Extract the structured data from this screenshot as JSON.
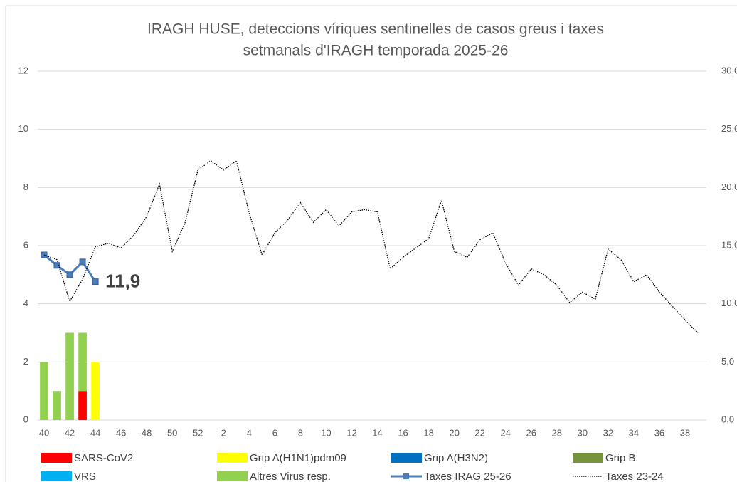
{
  "chart_data": {
    "type": "bar_line",
    "title": [
      "IRAGH  HUSE, deteccions víriques sentinelles de casos greus i taxes",
      "setmanals d'IRAGH temporada 2025-26"
    ],
    "categories": [
      "40",
      null,
      "42",
      null,
      "44",
      null,
      "46",
      null,
      "48",
      null,
      "50",
      null,
      "52",
      null,
      "2",
      null,
      "4",
      null,
      "6",
      null,
      "8",
      null,
      "10",
      null,
      "12",
      null,
      "14",
      null,
      "16",
      null,
      "18",
      null,
      "20",
      null,
      "22",
      null,
      "24",
      null,
      "26",
      null,
      "28",
      null,
      "30",
      null,
      "32",
      null,
      "34",
      null,
      "36",
      null,
      "38",
      null
    ],
    "ylim": [
      0,
      12
    ],
    "yticks": [
      0,
      2,
      4,
      6,
      8,
      10,
      12
    ],
    "y2lim": [
      0,
      30
    ],
    "y2ticks": [
      {
        "value": 0,
        "label": "0,0"
      },
      {
        "value": 5,
        "label": "5,0"
      },
      {
        "value": 10,
        "label": "10,0"
      },
      {
        "value": 15,
        "label": "15,0"
      },
      {
        "value": 20,
        "label": "20,0"
      },
      {
        "value": 25,
        "label": "25,0"
      },
      {
        "value": 30,
        "label": "30,0"
      }
    ],
    "grid": true,
    "legend": "bottom",
    "series": [
      {
        "name": "SARS-CoV2",
        "type": "bar",
        "color": "#ff0000",
        "values": [
          0,
          0,
          0,
          1,
          0,
          null,
          null,
          null,
          null,
          null,
          null,
          null,
          null,
          null,
          null,
          null,
          null,
          null,
          null,
          null,
          null,
          null,
          null,
          null,
          null,
          null,
          null,
          null,
          null,
          null,
          null,
          null,
          null,
          null,
          null,
          null,
          null,
          null,
          null,
          null,
          null,
          null,
          null,
          null,
          null,
          null,
          null,
          null,
          null,
          null,
          null,
          null
        ]
      },
      {
        "name": "Grip A(H1N1)pdm09",
        "type": "bar",
        "color": "#ffff00",
        "values": [
          0,
          0,
          0,
          0,
          2,
          null,
          null,
          null,
          null,
          null,
          null,
          null,
          null,
          null,
          null,
          null,
          null,
          null,
          null,
          null,
          null,
          null,
          null,
          null,
          null,
          null,
          null,
          null,
          null,
          null,
          null,
          null,
          null,
          null,
          null,
          null,
          null,
          null,
          null,
          null,
          null,
          null,
          null,
          null,
          null,
          null,
          null,
          null,
          null,
          null,
          null,
          null
        ]
      },
      {
        "name": "Grip A(H3N2)",
        "type": "bar",
        "color": "#0070c0",
        "values": [
          0,
          0,
          0,
          0,
          0,
          null,
          null,
          null,
          null,
          null,
          null,
          null,
          null,
          null,
          null,
          null,
          null,
          null,
          null,
          null,
          null,
          null,
          null,
          null,
          null,
          null,
          null,
          null,
          null,
          null,
          null,
          null,
          null,
          null,
          null,
          null,
          null,
          null,
          null,
          null,
          null,
          null,
          null,
          null,
          null,
          null,
          null,
          null,
          null,
          null,
          null,
          null
        ]
      },
      {
        "name": "Grip B",
        "type": "bar",
        "color": "#77933c",
        "values": [
          0,
          0,
          0,
          0,
          0,
          null,
          null,
          null,
          null,
          null,
          null,
          null,
          null,
          null,
          null,
          null,
          null,
          null,
          null,
          null,
          null,
          null,
          null,
          null,
          null,
          null,
          null,
          null,
          null,
          null,
          null,
          null,
          null,
          null,
          null,
          null,
          null,
          null,
          null,
          null,
          null,
          null,
          null,
          null,
          null,
          null,
          null,
          null,
          null,
          null,
          null,
          null
        ]
      },
      {
        "name": "VRS",
        "type": "bar",
        "color": "#00b0f0",
        "values": [
          0,
          0,
          0,
          0,
          0,
          null,
          null,
          null,
          null,
          null,
          null,
          null,
          null,
          null,
          null,
          null,
          null,
          null,
          null,
          null,
          null,
          null,
          null,
          null,
          null,
          null,
          null,
          null,
          null,
          null,
          null,
          null,
          null,
          null,
          null,
          null,
          null,
          null,
          null,
          null,
          null,
          null,
          null,
          null,
          null,
          null,
          null,
          null,
          null,
          null,
          null,
          null
        ]
      },
      {
        "name": "Altres Virus resp.",
        "type": "bar",
        "color": "#92d050",
        "values": [
          2,
          1,
          3,
          2,
          0,
          null,
          null,
          null,
          null,
          null,
          null,
          null,
          null,
          null,
          null,
          null,
          null,
          null,
          null,
          null,
          null,
          null,
          null,
          null,
          null,
          null,
          null,
          null,
          null,
          null,
          null,
          null,
          null,
          null,
          null,
          null,
          null,
          null,
          null,
          null,
          null,
          null,
          null,
          null,
          null,
          null,
          null,
          null,
          null,
          null,
          null,
          null
        ]
      },
      {
        "name": "Taxes IRAG 25-26",
        "type": "line",
        "axis": "y2",
        "color": "#4a7ebb",
        "marker": "square",
        "values": [
          14.2,
          13.3,
          12.5,
          13.6,
          11.9,
          null,
          null,
          null,
          null,
          null,
          null,
          null,
          null,
          null,
          null,
          null,
          null,
          null,
          null,
          null,
          null,
          null,
          null,
          null,
          null,
          null,
          null,
          null,
          null,
          null,
          null,
          null,
          null,
          null,
          null,
          null,
          null,
          null,
          null,
          null,
          null,
          null,
          null,
          null,
          null,
          null,
          null,
          null,
          null,
          null,
          null,
          null
        ],
        "value_labels": [
          null,
          null,
          null,
          null,
          "11,9",
          null,
          null,
          null,
          null,
          null,
          null,
          null,
          null,
          null,
          null,
          null,
          null,
          null,
          null,
          null,
          null,
          null,
          null,
          null,
          null,
          null,
          null,
          null,
          null,
          null,
          null,
          null,
          null,
          null,
          null,
          null,
          null,
          null,
          null,
          null,
          null,
          null,
          null,
          null,
          null,
          null,
          null,
          null,
          null,
          null,
          null,
          null
        ]
      },
      {
        "name": "Taxes 23-24",
        "type": "line",
        "axis": "y2",
        "color": "#000000",
        "dash": "dotted",
        "values": [
          14.2,
          13.8,
          10.2,
          12.1,
          14.9,
          15.2,
          14.8,
          15.9,
          17.5,
          20.3,
          14.5,
          17.0,
          21.5,
          22.3,
          21.5,
          22.3,
          17.8,
          14.2,
          16.1,
          17.2,
          18.7,
          17.0,
          18.1,
          16.7,
          17.9,
          18.1,
          17.9,
          13.0,
          14.0,
          14.8,
          15.6,
          18.9,
          14.5,
          14.0,
          15.5,
          16.1,
          13.5,
          11.6,
          13.0,
          12.5,
          11.6,
          10.1,
          11.0,
          10.4,
          14.7,
          13.8,
          11.9,
          12.5,
          11.0,
          9.8,
          8.6,
          7.5
        ]
      }
    ]
  }
}
